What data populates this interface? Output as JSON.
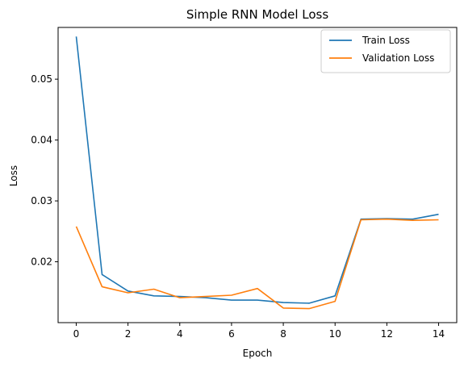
{
  "chart_data": {
    "type": "line",
    "title": "Simple RNN Model Loss",
    "xlabel": "Epoch",
    "ylabel": "Loss",
    "x": [
      0,
      1,
      2,
      3,
      4,
      5,
      6,
      7,
      8,
      9,
      10,
      11,
      12,
      13,
      14
    ],
    "xlim": [
      -0.7,
      14.7
    ],
    "ylim": [
      0.01,
      0.0585
    ],
    "xticks": [
      0,
      2,
      4,
      6,
      8,
      10,
      12,
      14
    ],
    "xtick_labels": [
      "0",
      "2",
      "4",
      "6",
      "8",
      "10",
      "12",
      "14"
    ],
    "yticks": [
      0.02,
      0.03,
      0.04,
      0.05
    ],
    "ytick_labels": [
      "0.02",
      "0.03",
      "0.04",
      "0.05"
    ],
    "grid": false,
    "legend_position": "top-right",
    "series": [
      {
        "name": "Train Loss",
        "color": "#1f77b4",
        "values": [
          0.057,
          0.0179,
          0.0152,
          0.0144,
          0.0143,
          0.0141,
          0.0137,
          0.0137,
          0.0133,
          0.0132,
          0.0144,
          0.027,
          0.0271,
          0.027,
          0.0278
        ]
      },
      {
        "name": "Validation Loss",
        "color": "#ff7f0e",
        "values": [
          0.0258,
          0.0159,
          0.0149,
          0.0155,
          0.0141,
          0.0143,
          0.0145,
          0.0156,
          0.0124,
          0.0123,
          0.0135,
          0.0269,
          0.027,
          0.0268,
          0.0269
        ]
      }
    ]
  }
}
